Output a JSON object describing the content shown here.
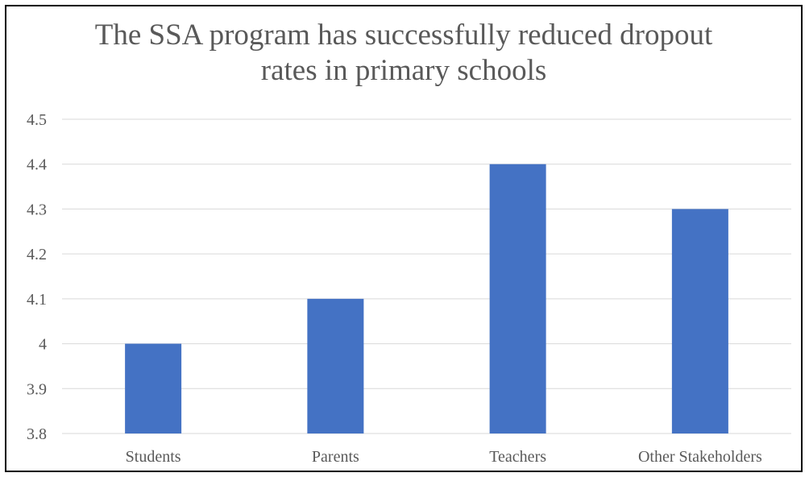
{
  "chart_data": {
    "type": "bar",
    "title": "The SSA program has successfully reduced dropout\nrates in primary schools",
    "categories": [
      "Students",
      "Parents",
      "Teachers",
      "Other Stakeholders"
    ],
    "values": [
      4.0,
      4.1,
      4.4,
      4.3
    ],
    "ylim": [
      3.8,
      4.5
    ],
    "yticks": [
      "3.8",
      "3.9",
      "4",
      "4.1",
      "4.2",
      "4.3",
      "4.4",
      "4.5"
    ],
    "xlabel": "",
    "ylabel": "",
    "grid": true,
    "legend": "none",
    "bar_color": "#4472C4",
    "grid_color": "#D9D9D9",
    "text_color": "#595959"
  }
}
